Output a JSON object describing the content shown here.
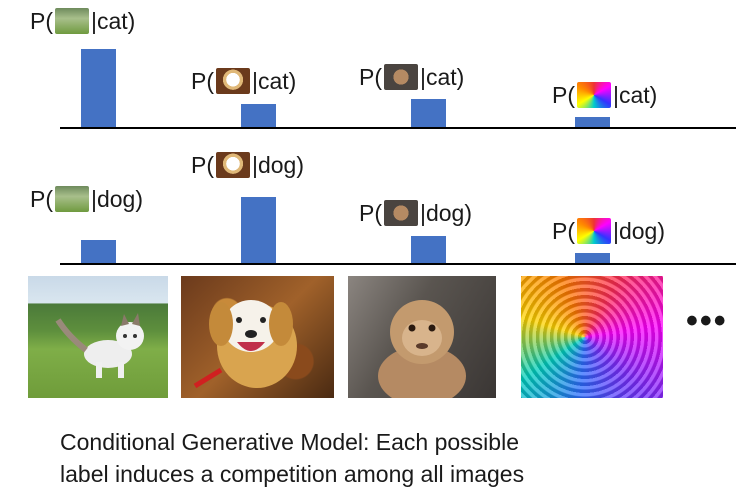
{
  "chart_data": [
    {
      "type": "bar",
      "categories": [
        "cat image",
        "dog image",
        "monkey image",
        "noise image"
      ],
      "labels": [
        "P(|cat)",
        "P(|cat)",
        "P(|cat)",
        "P(|cat)"
      ],
      "label_parts": {
        "prefix": "P(",
        "suffix": "|cat)"
      },
      "values": [
        78,
        23,
        28,
        10
      ],
      "bar_color": "#4472c4"
    },
    {
      "type": "bar",
      "categories": [
        "cat image",
        "dog image",
        "monkey image",
        "noise image"
      ],
      "label_parts": {
        "prefix": "P(",
        "suffix": "|dog)"
      },
      "values": [
        23,
        66,
        27,
        10
      ],
      "bar_color": "#4472c4"
    }
  ],
  "images": [
    "cat-photo",
    "dog-photo",
    "monkey-photo",
    "noise-image"
  ],
  "ellipsis": "•••",
  "caption": {
    "line1": "Conditional Generative Model: Each possible",
    "line2": "label induces a competition among all images"
  }
}
